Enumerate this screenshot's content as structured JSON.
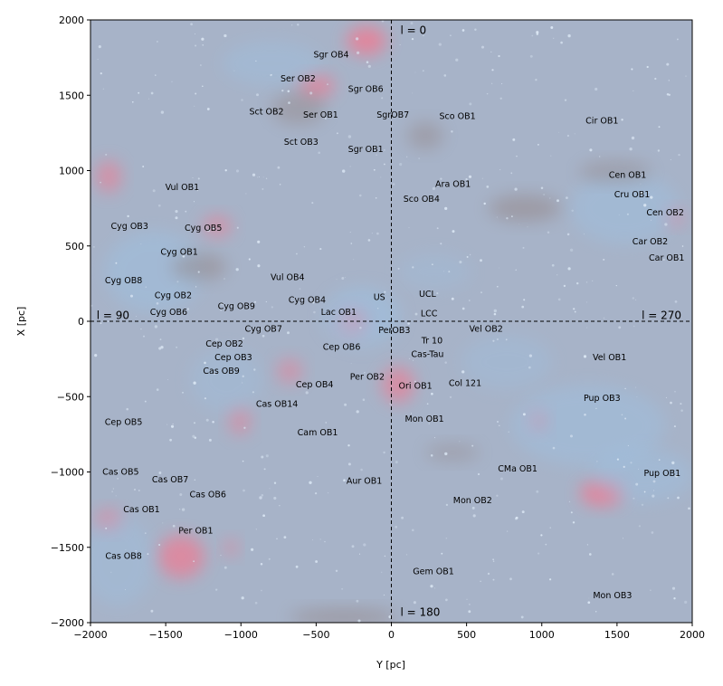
{
  "chart_data": {
    "type": "scatter",
    "title": "",
    "xlabel": "Y [pc]",
    "ylabel": "X [pc]",
    "xlim": [
      -2000,
      2000
    ],
    "ylim": [
      -2000,
      2000
    ],
    "xticks": [
      -2000,
      -1500,
      -1000,
      -500,
      0,
      500,
      1000,
      1500,
      2000
    ],
    "yticks": [
      -2000,
      -1500,
      -1000,
      -500,
      0,
      500,
      1000,
      1500,
      2000
    ],
    "tick_labels_x": [
      "−2000",
      "−1500",
      "−1000",
      "−500",
      "0",
      "500",
      "1000",
      "1500",
      "2000"
    ],
    "tick_labels_y": [
      "−2000",
      "−1500",
      "−1000",
      "−500",
      "0",
      "500",
      "1000",
      "1500",
      "2000"
    ],
    "grid": false,
    "reference_lines": [
      {
        "orientation": "vertical",
        "value": 0,
        "style": "dashed"
      },
      {
        "orientation": "horizontal",
        "value": 0,
        "style": "dashed"
      }
    ],
    "direction_labels": [
      {
        "text": "l = 0",
        "x": 60,
        "y": 1930
      },
      {
        "text": "l = 90",
        "x": -1960,
        "y": 40
      },
      {
        "text": "l = 270",
        "x": 1850,
        "y": 40
      },
      {
        "text": "l = 180",
        "x": 60,
        "y": -1930
      }
    ],
    "associations": [
      {
        "name": "Sgr OB4",
        "x": -400,
        "y": 1770
      },
      {
        "name": "Ser OB2",
        "x": -620,
        "y": 1610
      },
      {
        "name": "Sgr OB6",
        "x": -170,
        "y": 1540
      },
      {
        "name": "Sct OB2",
        "x": -830,
        "y": 1390
      },
      {
        "name": "Ser OB1",
        "x": -470,
        "y": 1370
      },
      {
        "name": "SgrOB7",
        "x": 10,
        "y": 1370
      },
      {
        "name": "Sco OB1",
        "x": 440,
        "y": 1360
      },
      {
        "name": "Cir OB1",
        "x": 1400,
        "y": 1330
      },
      {
        "name": "Sct OB3",
        "x": -600,
        "y": 1190
      },
      {
        "name": "Sgr OB1",
        "x": -170,
        "y": 1140
      },
      {
        "name": "Cen OB1",
        "x": 1570,
        "y": 970
      },
      {
        "name": "Ara OB1",
        "x": 410,
        "y": 910
      },
      {
        "name": "Vul OB1",
        "x": -1390,
        "y": 890
      },
      {
        "name": "Cru OB1",
        "x": 1600,
        "y": 840
      },
      {
        "name": "Sco OB4",
        "x": 200,
        "y": 810
      },
      {
        "name": "Cen OB2",
        "x": 1820,
        "y": 720
      },
      {
        "name": "Cyg OB3",
        "x": -1740,
        "y": 630
      },
      {
        "name": "Cyg OB5",
        "x": -1250,
        "y": 620
      },
      {
        "name": "Car OB2",
        "x": 1720,
        "y": 530
      },
      {
        "name": "Cyg OB1",
        "x": -1410,
        "y": 460
      },
      {
        "name": "Car OB1",
        "x": 1830,
        "y": 420
      },
      {
        "name": "Cyg OB8",
        "x": -1780,
        "y": 270
      },
      {
        "name": "Vul OB4",
        "x": -690,
        "y": 290
      },
      {
        "name": "UCL",
        "x": 240,
        "y": 180
      },
      {
        "name": "Cyg OB2",
        "x": -1450,
        "y": 170
      },
      {
        "name": "Cyg OB4",
        "x": -560,
        "y": 140
      },
      {
        "name": "US",
        "x": -80,
        "y": 160
      },
      {
        "name": "Cyg OB9",
        "x": -1030,
        "y": 100
      },
      {
        "name": "Cyg OB6",
        "x": -1480,
        "y": 60
      },
      {
        "name": "Lac OB1",
        "x": -350,
        "y": 60
      },
      {
        "name": "LCC",
        "x": 250,
        "y": 50
      },
      {
        "name": "Cyg OB7",
        "x": -850,
        "y": -50
      },
      {
        "name": "PerOB3",
        "x": 20,
        "y": -60
      },
      {
        "name": "Vel OB2",
        "x": 630,
        "y": -50
      },
      {
        "name": "Tr 10",
        "x": 270,
        "y": -130
      },
      {
        "name": "Cep OB2",
        "x": -1110,
        "y": -150
      },
      {
        "name": "Cep OB6",
        "x": -330,
        "y": -170
      },
      {
        "name": "Cas-Tau",
        "x": 240,
        "y": -220
      },
      {
        "name": "Cep OB3",
        "x": -1050,
        "y": -240
      },
      {
        "name": "Vel OB1",
        "x": 1450,
        "y": -240
      },
      {
        "name": "Cas OB9",
        "x": -1130,
        "y": -330
      },
      {
        "name": "Per OB2",
        "x": -160,
        "y": -370
      },
      {
        "name": "Col 121",
        "x": 490,
        "y": -410
      },
      {
        "name": "Cep OB4",
        "x": -510,
        "y": -420
      },
      {
        "name": "Ori OB1",
        "x": 160,
        "y": -430
      },
      {
        "name": "Pup OB3",
        "x": 1400,
        "y": -510
      },
      {
        "name": "Cas OB14",
        "x": -760,
        "y": -550
      },
      {
        "name": "Mon OB1",
        "x": 220,
        "y": -650
      },
      {
        "name": "Cep OB5",
        "x": -1780,
        "y": -670
      },
      {
        "name": "Cam OB1",
        "x": -490,
        "y": -740
      },
      {
        "name": "CMa OB1",
        "x": 840,
        "y": -980
      },
      {
        "name": "Cas OB5",
        "x": -1800,
        "y": -1000
      },
      {
        "name": "Pup OB1",
        "x": 1800,
        "y": -1010
      },
      {
        "name": "Cas OB7",
        "x": -1470,
        "y": -1050
      },
      {
        "name": "Aur OB1",
        "x": -180,
        "y": -1060
      },
      {
        "name": "Cas OB6",
        "x": -1220,
        "y": -1150
      },
      {
        "name": "Mon OB2",
        "x": 540,
        "y": -1190
      },
      {
        "name": "Cas OB1",
        "x": -1660,
        "y": -1250
      },
      {
        "name": "Per OB1",
        "x": -1300,
        "y": -1390
      },
      {
        "name": "Cas OB8",
        "x": -1780,
        "y": -1560
      },
      {
        "name": "Gem OB1",
        "x": 280,
        "y": -1660
      },
      {
        "name": "Mon OB3",
        "x": 1470,
        "y": -1820
      }
    ]
  },
  "colors": {
    "background": "#a7b3c8",
    "star_glow": "#dbe7f4",
    "cloud_blue": "#9cc2e4",
    "cloud_red": "#f07a92",
    "cloud_brown": "#8a7068",
    "reference_line": "#000000",
    "frame": "#000000"
  }
}
